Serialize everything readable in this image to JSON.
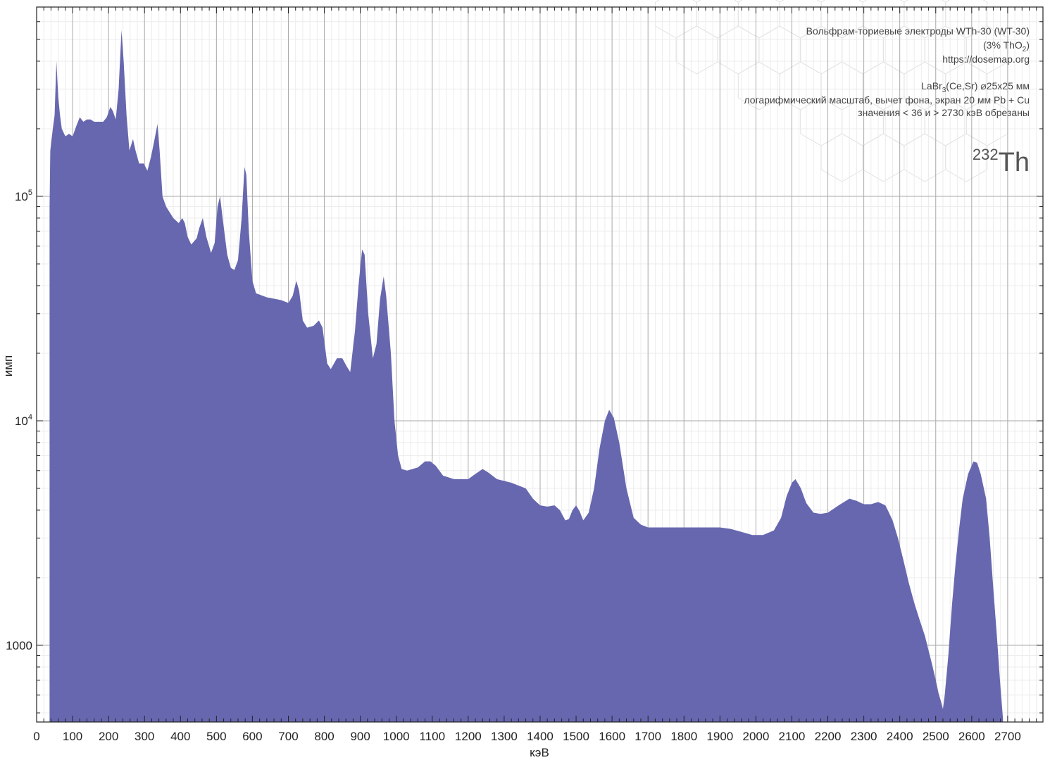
{
  "chart_data": {
    "type": "area",
    "xlabel": "кэВ",
    "ylabel": "имп",
    "xlim": [
      0,
      2800
    ],
    "ylim": [
      470,
      700000
    ],
    "y_scale": "log",
    "grid": true,
    "color": "#6767b0",
    "x_ticks": [
      "0",
      "100",
      "200",
      "300",
      "400",
      "500",
      "600",
      "700",
      "800",
      "900",
      "1000",
      "1100",
      "1200",
      "1300",
      "1400",
      "1500",
      "1600",
      "1700",
      "1800",
      "1900",
      "2000",
      "2100",
      "2200",
      "2300",
      "2400",
      "2500",
      "2600",
      "2700"
    ],
    "y_ticks": [
      {
        "value": 1000,
        "base": "1000",
        "exp": ""
      },
      {
        "value": 10000,
        "base": "10",
        "exp": "4"
      },
      {
        "value": 100000,
        "base": "10",
        "exp": "5"
      }
    ],
    "info_lines": {
      "line1": "Вольфрам-ториевые электроды WTh-30 (WT-30)",
      "line2_pre": "(3% ThO",
      "line2_sub": "2",
      "line2_post": ")",
      "line3": "https://dosemap.org",
      "line4_pre": "LaBr",
      "line4_sub": "3",
      "line4_post": "(Ce,Sr) ⌀25x25 мм",
      "line5": "логарифмический масштаб, вычет фона, экран 20 мм Pb + Cu",
      "line6": "значения < 36 и > 2730 кэВ обрезаны"
    },
    "isotope": {
      "mass": "232",
      "symbol": "Th"
    },
    "series": [
      {
        "points": [
          [
            36,
            90000
          ],
          [
            38,
            160000
          ],
          [
            45,
            200000
          ],
          [
            50,
            230000
          ],
          [
            55,
            400000
          ],
          [
            60,
            280000
          ],
          [
            65,
            230000
          ],
          [
            70,
            200000
          ],
          [
            80,
            185000
          ],
          [
            90,
            190000
          ],
          [
            100,
            185000
          ],
          [
            110,
            205000
          ],
          [
            120,
            225000
          ],
          [
            130,
            215000
          ],
          [
            140,
            220000
          ],
          [
            150,
            220000
          ],
          [
            160,
            215000
          ],
          [
            170,
            215000
          ],
          [
            185,
            215000
          ],
          [
            195,
            225000
          ],
          [
            205,
            250000
          ],
          [
            212,
            240000
          ],
          [
            220,
            220000
          ],
          [
            228,
            300000
          ],
          [
            236,
            550000
          ],
          [
            242,
            400000
          ],
          [
            250,
            230000
          ],
          [
            258,
            160000
          ],
          [
            268,
            180000
          ],
          [
            275,
            160000
          ],
          [
            285,
            140000
          ],
          [
            298,
            140000
          ],
          [
            308,
            130000
          ],
          [
            318,
            150000
          ],
          [
            328,
            180000
          ],
          [
            336,
            210000
          ],
          [
            342,
            160000
          ],
          [
            350,
            100000
          ],
          [
            360,
            90000
          ],
          [
            380,
            80000
          ],
          [
            395,
            76000
          ],
          [
            405,
            80000
          ],
          [
            412,
            76000
          ],
          [
            420,
            66000
          ],
          [
            430,
            61000
          ],
          [
            445,
            65000
          ],
          [
            452,
            72000
          ],
          [
            462,
            80000
          ],
          [
            472,
            66000
          ],
          [
            485,
            56000
          ],
          [
            495,
            62000
          ],
          [
            503,
            90000
          ],
          [
            510,
            100000
          ],
          [
            518,
            78000
          ],
          [
            530,
            55000
          ],
          [
            540,
            48000
          ],
          [
            550,
            47000
          ],
          [
            560,
            52000
          ],
          [
            570,
            80000
          ],
          [
            578,
            135000
          ],
          [
            583,
            125000
          ],
          [
            590,
            70000
          ],
          [
            600,
            42000
          ],
          [
            610,
            37000
          ],
          [
            640,
            35500
          ],
          [
            680,
            34500
          ],
          [
            700,
            33500
          ],
          [
            712,
            36000
          ],
          [
            722,
            42000
          ],
          [
            730,
            38000
          ],
          [
            740,
            28000
          ],
          [
            752,
            26000
          ],
          [
            770,
            26500
          ],
          [
            785,
            28000
          ],
          [
            795,
            26000
          ],
          [
            808,
            18000
          ],
          [
            818,
            17000
          ],
          [
            835,
            19000
          ],
          [
            850,
            19000
          ],
          [
            862,
            17500
          ],
          [
            872,
            16500
          ],
          [
            885,
            25000
          ],
          [
            895,
            40000
          ],
          [
            905,
            58000
          ],
          [
            912,
            55000
          ],
          [
            922,
            30000
          ],
          [
            935,
            19000
          ],
          [
            945,
            22000
          ],
          [
            955,
            35000
          ],
          [
            965,
            44000
          ],
          [
            972,
            36000
          ],
          [
            985,
            20000
          ],
          [
            995,
            10000
          ],
          [
            1005,
            7000
          ],
          [
            1015,
            6100
          ],
          [
            1030,
            6000
          ],
          [
            1060,
            6200
          ],
          [
            1080,
            6600
          ],
          [
            1095,
            6600
          ],
          [
            1110,
            6300
          ],
          [
            1130,
            5700
          ],
          [
            1160,
            5500
          ],
          [
            1200,
            5500
          ],
          [
            1220,
            5800
          ],
          [
            1240,
            6100
          ],
          [
            1255,
            5900
          ],
          [
            1280,
            5500
          ],
          [
            1320,
            5300
          ],
          [
            1360,
            5000
          ],
          [
            1380,
            4500
          ],
          [
            1400,
            4200
          ],
          [
            1420,
            4150
          ],
          [
            1440,
            4200
          ],
          [
            1455,
            4000
          ],
          [
            1470,
            3600
          ],
          [
            1480,
            3650
          ],
          [
            1490,
            4000
          ],
          [
            1500,
            4200
          ],
          [
            1510,
            3950
          ],
          [
            1520,
            3600
          ],
          [
            1535,
            3900
          ],
          [
            1550,
            5000
          ],
          [
            1565,
            7500
          ],
          [
            1580,
            10000
          ],
          [
            1592,
            11200
          ],
          [
            1605,
            10300
          ],
          [
            1620,
            8000
          ],
          [
            1640,
            5000
          ],
          [
            1660,
            3700
          ],
          [
            1680,
            3450
          ],
          [
            1700,
            3350
          ],
          [
            1750,
            3350
          ],
          [
            1800,
            3350
          ],
          [
            1850,
            3350
          ],
          [
            1900,
            3350
          ],
          [
            1930,
            3300
          ],
          [
            1960,
            3200
          ],
          [
            1990,
            3100
          ],
          [
            2020,
            3100
          ],
          [
            2050,
            3250
          ],
          [
            2070,
            3700
          ],
          [
            2085,
            4600
          ],
          [
            2100,
            5300
          ],
          [
            2110,
            5500
          ],
          [
            2125,
            5000
          ],
          [
            2140,
            4300
          ],
          [
            2160,
            3900
          ],
          [
            2180,
            3850
          ],
          [
            2200,
            3900
          ],
          [
            2230,
            4200
          ],
          [
            2260,
            4500
          ],
          [
            2280,
            4400
          ],
          [
            2300,
            4250
          ],
          [
            2320,
            4250
          ],
          [
            2340,
            4350
          ],
          [
            2360,
            4200
          ],
          [
            2370,
            3900
          ],
          [
            2380,
            3600
          ],
          [
            2395,
            3000
          ],
          [
            2410,
            2400
          ],
          [
            2425,
            1900
          ],
          [
            2440,
            1550
          ],
          [
            2455,
            1300
          ],
          [
            2470,
            1100
          ],
          [
            2480,
            950
          ],
          [
            2490,
            820
          ],
          [
            2500,
            700
          ],
          [
            2508,
            610
          ],
          [
            2515,
            560
          ],
          [
            2520,
            520
          ],
          [
            2525,
            600
          ],
          [
            2535,
            900
          ],
          [
            2545,
            1500
          ],
          [
            2555,
            2300
          ],
          [
            2565,
            3300
          ],
          [
            2575,
            4500
          ],
          [
            2590,
            5800
          ],
          [
            2605,
            6600
          ],
          [
            2615,
            6500
          ],
          [
            2625,
            5800
          ],
          [
            2640,
            4500
          ],
          [
            2650,
            3000
          ],
          [
            2660,
            1800
          ],
          [
            2670,
            1100
          ],
          [
            2680,
            650
          ],
          [
            2687,
            470
          ]
        ]
      }
    ]
  }
}
